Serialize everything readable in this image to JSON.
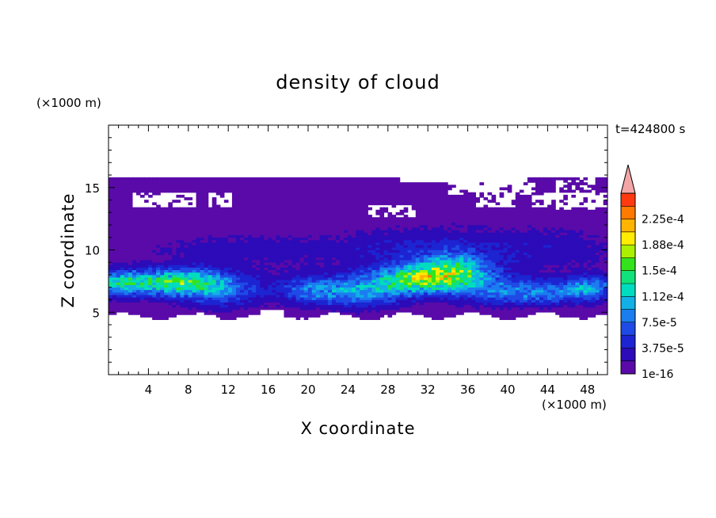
{
  "chart_data": {
    "type": "heatmap",
    "title": "density of cloud",
    "xlabel": "X coordinate",
    "ylabel": "Z coordinate",
    "x_unit": "(×1000 m)",
    "y_unit": "(×1000 m)",
    "time_label": "t=424800 s",
    "xlim": [
      0,
      50
    ],
    "ylim": [
      0,
      20
    ],
    "x_ticks": [
      4,
      8,
      12,
      16,
      20,
      24,
      28,
      32,
      36,
      40,
      44,
      48
    ],
    "y_ticks": [
      5,
      10,
      15
    ],
    "colorbar": {
      "levels": [
        1e-16,
        1.875e-05,
        3.75e-05,
        5.625e-05,
        7.5e-05,
        9.375e-05,
        0.0001125,
        0.00013125,
        0.00015,
        0.00016875,
        0.0001875,
        0.00020625,
        0.000225,
        0.00024375
      ],
      "labels": [
        "1e-16",
        "3.75e-5",
        "7.5e-5",
        "1.12e-4",
        "1.5e-4",
        "1.88e-4",
        "2.25e-4"
      ],
      "label_values": [
        1e-16,
        3.75e-05,
        7.5e-05,
        0.0001125,
        0.00015,
        0.0001875,
        0.000225
      ],
      "colors": [
        "#5a0aa8",
        "#2c0bb8",
        "#1d24d2",
        "#1f4ae6",
        "#1a7df0",
        "#12b0e6",
        "#00dcc0",
        "#11e27a",
        "#33e41c",
        "#aaf000",
        "#ffec00",
        "#ffb400",
        "#ff7a00",
        "#ff3a10"
      ],
      "extend_color": "#f4a6a6"
    },
    "field": {
      "x_range": [
        0,
        50
      ],
      "z_range": [
        4.5,
        16
      ],
      "description_values": {
        "max_density": 0.00016,
        "max_x": 8,
        "max_z": 7.5
      }
    }
  }
}
